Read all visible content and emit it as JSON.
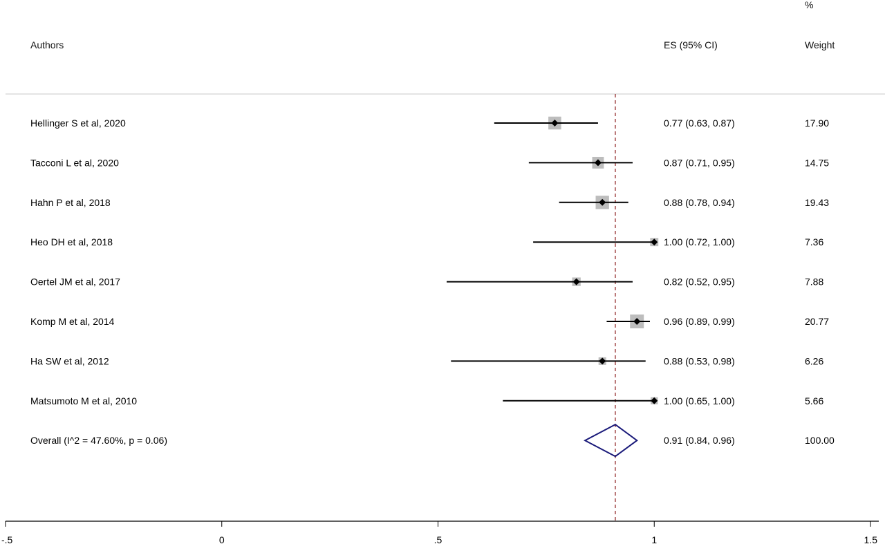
{
  "headers": {
    "authors": "Authors",
    "es": "ES (95% CI)",
    "percent": "%",
    "weight": "Weight"
  },
  "colors": {
    "point": "#000000",
    "box": "#bdbdbd",
    "diamond": "#1a1a7a",
    "reference_line": "#8b1a1a",
    "separator": "#c8c8c8"
  },
  "chart_data": {
    "type": "forest",
    "xlim": [
      -0.5,
      1.5
    ],
    "ticks": [
      {
        "value": -0.5,
        "label": "-.5"
      },
      {
        "value": 0,
        "label": "0"
      },
      {
        "value": 0.5,
        "label": ".5"
      },
      {
        "value": 1,
        "label": "1"
      },
      {
        "value": 1.5,
        "label": "1.5"
      }
    ],
    "reference_value": 0.91,
    "studies": [
      {
        "author": "Hellinger S et al, 2020",
        "es": 0.77,
        "lo": 0.63,
        "hi": 0.87,
        "es_text": "0.77 (0.63, 0.87)",
        "weight": 17.9,
        "weight_text": "17.90"
      },
      {
        "author": "Tacconi L et al, 2020",
        "es": 0.87,
        "lo": 0.71,
        "hi": 0.95,
        "es_text": "0.87 (0.71, 0.95)",
        "weight": 14.75,
        "weight_text": "14.75"
      },
      {
        "author": "Hahn P  et al, 2018",
        "es": 0.88,
        "lo": 0.78,
        "hi": 0.94,
        "es_text": "0.88 (0.78, 0.94)",
        "weight": 19.43,
        "weight_text": "19.43"
      },
      {
        "author": "Heo DH et al, 2018",
        "es": 1.0,
        "lo": 0.72,
        "hi": 1.0,
        "es_text": "1.00 (0.72, 1.00)",
        "weight": 7.36,
        "weight_text": "7.36"
      },
      {
        "author": "Oertel JM et al, 2017",
        "es": 0.82,
        "lo": 0.52,
        "hi": 0.95,
        "es_text": "0.82 (0.52, 0.95)",
        "weight": 7.88,
        "weight_text": "7.88"
      },
      {
        "author": "Komp M et al, 2014",
        "es": 0.96,
        "lo": 0.89,
        "hi": 0.99,
        "es_text": "0.96 (0.89, 0.99)",
        "weight": 20.77,
        "weight_text": "20.77"
      },
      {
        "author": "Ha SW et al, 2012",
        "es": 0.88,
        "lo": 0.53,
        "hi": 0.98,
        "es_text": "0.88 (0.53, 0.98)",
        "weight": 6.26,
        "weight_text": "6.26"
      },
      {
        "author": "Matsumoto M et al, 2010",
        "es": 1.0,
        "lo": 0.65,
        "hi": 1.0,
        "es_text": "1.00 (0.65, 1.00)",
        "weight": 5.66,
        "weight_text": "5.66"
      }
    ],
    "overall": {
      "label": "Overall  (I^2 = 47.60%, p = 0.06)",
      "es": 0.91,
      "lo": 0.84,
      "hi": 0.96,
      "es_text": "0.91 (0.84, 0.96)",
      "weight_text": "100.00"
    }
  }
}
